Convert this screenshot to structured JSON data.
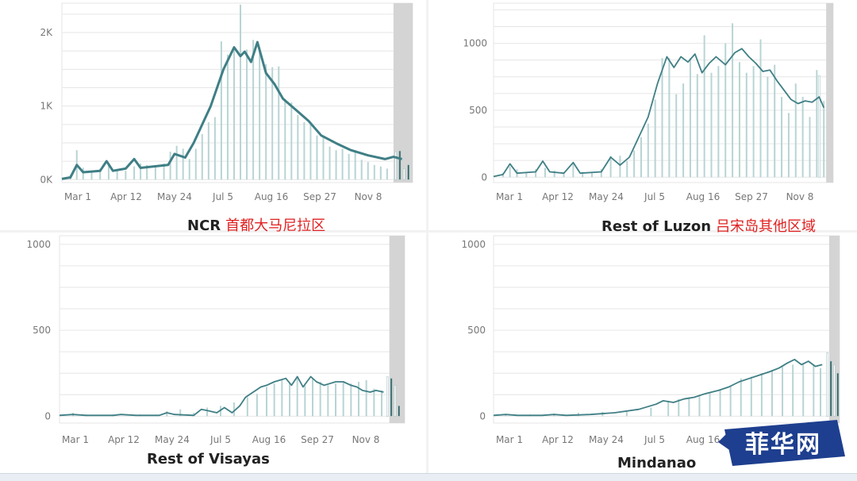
{
  "colors": {
    "line": "#3f7f85",
    "bar": "#b8d4d4",
    "shade": "#d4d4d4",
    "grid": "#e6e6e6",
    "title_cn": "#e02020",
    "watermark_bg": "#1e3f8f"
  },
  "watermark": {
    "text": "菲华网"
  },
  "chart_data": [
    {
      "id": "ncr",
      "type": "bar",
      "title": "NCR",
      "title_cn": "首都大马尼拉区",
      "y_ticks": [
        {
          "v": 0,
          "label": "0K"
        },
        {
          "v": 1000,
          "label": "1K"
        },
        {
          "v": 2000,
          "label": "2K"
        }
      ],
      "x_ticks": [
        "Mar 1",
        "Apr 12",
        "May 24",
        "Jul 5",
        "Aug 16",
        "Sep 27",
        "Nov 8"
      ],
      "ylim": [
        -40,
        2400
      ],
      "line": [
        [
          0,
          10
        ],
        [
          4,
          30
        ],
        [
          7,
          200
        ],
        [
          10,
          100
        ],
        [
          18,
          120
        ],
        [
          21,
          250
        ],
        [
          24,
          120
        ],
        [
          30,
          150
        ],
        [
          34,
          280
        ],
        [
          37,
          160
        ],
        [
          50,
          200
        ],
        [
          53,
          350
        ],
        [
          58,
          300
        ],
        [
          62,
          500
        ],
        [
          70,
          1000
        ],
        [
          76,
          1500
        ],
        [
          81,
          1800
        ],
        [
          84,
          1680
        ],
        [
          86,
          1740
        ],
        [
          89,
          1600
        ],
        [
          92,
          1870
        ],
        [
          96,
          1450
        ],
        [
          100,
          1300
        ],
        [
          104,
          1100
        ],
        [
          110,
          950
        ],
        [
          116,
          800
        ],
        [
          122,
          600
        ],
        [
          130,
          480
        ],
        [
          136,
          400
        ],
        [
          144,
          330
        ],
        [
          152,
          280
        ],
        [
          156,
          310
        ],
        [
          160,
          280
        ]
      ],
      "bars": [
        [
          4,
          60
        ],
        [
          7,
          400
        ],
        [
          10,
          160
        ],
        [
          14,
          120
        ],
        [
          18,
          150
        ],
        [
          22,
          220
        ],
        [
          26,
          140
        ],
        [
          30,
          120
        ],
        [
          34,
          180
        ],
        [
          37,
          220
        ],
        [
          40,
          200
        ],
        [
          44,
          180
        ],
        [
          48,
          220
        ],
        [
          51,
          380
        ],
        [
          54,
          460
        ],
        [
          57,
          420
        ],
        [
          60,
          280
        ],
        [
          63,
          420
        ],
        [
          66,
          620
        ],
        [
          69,
          780
        ],
        [
          72,
          850
        ],
        [
          75,
          1880
        ],
        [
          78,
          1700
        ],
        [
          81,
          1800
        ],
        [
          84,
          2380
        ],
        [
          87,
          1770
        ],
        [
          90,
          1900
        ],
        [
          93,
          1800
        ],
        [
          96,
          1570
        ],
        [
          99,
          1530
        ],
        [
          102,
          1540
        ],
        [
          105,
          1100
        ],
        [
          108,
          1050
        ],
        [
          111,
          880
        ],
        [
          114,
          780
        ],
        [
          117,
          750
        ],
        [
          120,
          600
        ],
        [
          123,
          600
        ],
        [
          126,
          450
        ],
        [
          129,
          400
        ],
        [
          132,
          420
        ],
        [
          135,
          350
        ],
        [
          138,
          400
        ],
        [
          141,
          270
        ],
        [
          144,
          240
        ],
        [
          147,
          200
        ],
        [
          150,
          180
        ],
        [
          153,
          150
        ]
      ],
      "shade_from": 156,
      "tail_bars": [
        [
          157,
          380
        ],
        [
          159,
          390
        ],
        [
          161,
          150
        ],
        [
          163,
          200
        ]
      ]
    },
    {
      "id": "rest-of-luzon",
      "type": "bar",
      "title": "Rest of Luzon",
      "title_cn": "吕宋岛其他区域",
      "y_ticks": [
        {
          "v": 0,
          "label": "0"
        },
        {
          "v": 500,
          "label": "500"
        },
        {
          "v": 1000,
          "label": "1000"
        }
      ],
      "x_ticks": [
        "Mar 1",
        "Apr 12",
        "May 24",
        "Jul 5",
        "Aug 16",
        "Sep 27",
        "Nov 8"
      ],
      "ylim": [
        -40,
        1300
      ],
      "line": [
        [
          0,
          5
        ],
        [
          4,
          20
        ],
        [
          7,
          100
        ],
        [
          10,
          30
        ],
        [
          18,
          40
        ],
        [
          21,
          120
        ],
        [
          24,
          40
        ],
        [
          30,
          30
        ],
        [
          34,
          110
        ],
        [
          37,
          30
        ],
        [
          46,
          40
        ],
        [
          50,
          150
        ],
        [
          54,
          90
        ],
        [
          58,
          150
        ],
        [
          62,
          300
        ],
        [
          66,
          450
        ],
        [
          70,
          700
        ],
        [
          74,
          900
        ],
        [
          77,
          820
        ],
        [
          80,
          900
        ],
        [
          83,
          860
        ],
        [
          86,
          920
        ],
        [
          89,
          780
        ],
        [
          92,
          850
        ],
        [
          95,
          900
        ],
        [
          99,
          840
        ],
        [
          103,
          930
        ],
        [
          106,
          960
        ],
        [
          109,
          900
        ],
        [
          112,
          850
        ],
        [
          115,
          790
        ],
        [
          118,
          800
        ],
        [
          121,
          720
        ],
        [
          124,
          650
        ],
        [
          127,
          580
        ],
        [
          130,
          550
        ],
        [
          133,
          570
        ],
        [
          136,
          560
        ],
        [
          139,
          600
        ],
        [
          141,
          520
        ]
      ],
      "bars": [
        [
          4,
          30
        ],
        [
          7,
          80
        ],
        [
          10,
          60
        ],
        [
          14,
          40
        ],
        [
          18,
          60
        ],
        [
          22,
          70
        ],
        [
          26,
          50
        ],
        [
          30,
          30
        ],
        [
          34,
          110
        ],
        [
          38,
          40
        ],
        [
          42,
          30
        ],
        [
          46,
          60
        ],
        [
          50,
          160
        ],
        [
          54,
          160
        ],
        [
          57,
          120
        ],
        [
          60,
          200
        ],
        [
          63,
          300
        ],
        [
          66,
          400
        ],
        [
          69,
          580
        ],
        [
          72,
          890
        ],
        [
          75,
          890
        ],
        [
          78,
          620
        ],
        [
          81,
          700
        ],
        [
          84,
          890
        ],
        [
          87,
          770
        ],
        [
          90,
          1060
        ],
        [
          93,
          780
        ],
        [
          96,
          830
        ],
        [
          99,
          1000
        ],
        [
          102,
          1150
        ],
        [
          105,
          860
        ],
        [
          108,
          780
        ],
        [
          111,
          830
        ],
        [
          114,
          1030
        ],
        [
          117,
          750
        ],
        [
          120,
          840
        ],
        [
          123,
          600
        ],
        [
          126,
          480
        ],
        [
          129,
          700
        ],
        [
          132,
          600
        ],
        [
          135,
          450
        ],
        [
          138,
          800
        ],
        [
          141,
          570
        ]
      ],
      "shade_from": 142,
      "tail_bars": [
        [
          139,
          760
        ]
      ]
    },
    {
      "id": "rest-of-visayas",
      "type": "bar",
      "title": "Rest of Visayas",
      "title_cn": "",
      "y_ticks": [
        {
          "v": 0,
          "label": "0"
        },
        {
          "v": 500,
          "label": "500"
        },
        {
          "v": 1000,
          "label": "1000"
        }
      ],
      "x_ticks": [
        "Mar 1",
        "Apr 12",
        "May 24",
        "Jul 5",
        "Aug 16",
        "Sep 27",
        "Nov 8"
      ],
      "ylim": [
        -40,
        1050
      ],
      "line": [
        [
          0,
          5
        ],
        [
          7,
          10
        ],
        [
          14,
          5
        ],
        [
          28,
          5
        ],
        [
          32,
          10
        ],
        [
          40,
          5
        ],
        [
          52,
          5
        ],
        [
          56,
          20
        ],
        [
          60,
          10
        ],
        [
          70,
          5
        ],
        [
          74,
          40
        ],
        [
          78,
          30
        ],
        [
          82,
          20
        ],
        [
          86,
          50
        ],
        [
          90,
          20
        ],
        [
          94,
          60
        ],
        [
          97,
          110
        ],
        [
          101,
          140
        ],
        [
          105,
          170
        ],
        [
          108,
          180
        ],
        [
          112,
          200
        ],
        [
          115,
          210
        ],
        [
          118,
          220
        ],
        [
          121,
          180
        ],
        [
          124,
          230
        ],
        [
          127,
          170
        ],
        [
          131,
          230
        ],
        [
          134,
          200
        ],
        [
          138,
          180
        ],
        [
          141,
          190
        ],
        [
          144,
          200
        ],
        [
          148,
          200
        ],
        [
          152,
          180
        ],
        [
          155,
          170
        ],
        [
          158,
          150
        ],
        [
          162,
          140
        ],
        [
          165,
          150
        ],
        [
          169,
          140
        ]
      ],
      "bars": [
        [
          7,
          20
        ],
        [
          14,
          10
        ],
        [
          28,
          10
        ],
        [
          42,
          10
        ],
        [
          56,
          30
        ],
        [
          63,
          40
        ],
        [
          70,
          20
        ],
        [
          77,
          50
        ],
        [
          84,
          60
        ],
        [
          91,
          80
        ],
        [
          98,
          110
        ],
        [
          103,
          130
        ],
        [
          108,
          170
        ],
        [
          112,
          190
        ],
        [
          116,
          210
        ],
        [
          120,
          190
        ],
        [
          124,
          220
        ],
        [
          128,
          180
        ],
        [
          132,
          220
        ],
        [
          136,
          200
        ],
        [
          140,
          180
        ],
        [
          144,
          190
        ],
        [
          148,
          200
        ],
        [
          152,
          190
        ],
        [
          156,
          200
        ],
        [
          160,
          210
        ],
        [
          164,
          160
        ],
        [
          168,
          150
        ]
      ],
      "shade_from": 172,
      "tail_bars": [
        [
          171,
          230
        ],
        [
          173,
          220
        ],
        [
          175,
          180
        ],
        [
          177,
          60
        ]
      ]
    },
    {
      "id": "mindanao",
      "type": "bar",
      "title": "Mindanao",
      "title_cn": "",
      "y_ticks": [
        {
          "v": 0,
          "label": "0"
        },
        {
          "v": 500,
          "label": "500"
        },
        {
          "v": 1000,
          "label": "1000"
        }
      ],
      "x_ticks": [
        "Mar 1",
        "Apr 12",
        "May 24",
        "Jul 5",
        "Aug 16"
      ],
      "ylim": [
        -40,
        1050
      ],
      "line": [
        [
          0,
          5
        ],
        [
          7,
          10
        ],
        [
          14,
          5
        ],
        [
          28,
          5
        ],
        [
          35,
          10
        ],
        [
          42,
          5
        ],
        [
          56,
          10
        ],
        [
          70,
          20
        ],
        [
          84,
          40
        ],
        [
          94,
          70
        ],
        [
          98,
          90
        ],
        [
          104,
          80
        ],
        [
          110,
          100
        ],
        [
          116,
          110
        ],
        [
          122,
          130
        ],
        [
          130,
          150
        ],
        [
          136,
          170
        ],
        [
          142,
          200
        ],
        [
          148,
          220
        ],
        [
          154,
          240
        ],
        [
          160,
          260
        ],
        [
          165,
          280
        ],
        [
          170,
          310
        ],
        [
          174,
          330
        ],
        [
          178,
          300
        ],
        [
          182,
          320
        ],
        [
          186,
          290
        ],
        [
          190,
          300
        ]
      ],
      "bars": [
        [
          7,
          10
        ],
        [
          21,
          10
        ],
        [
          35,
          15
        ],
        [
          49,
          20
        ],
        [
          63,
          25
        ],
        [
          77,
          30
        ],
        [
          91,
          50
        ],
        [
          101,
          90
        ],
        [
          107,
          100
        ],
        [
          113,
          110
        ],
        [
          119,
          120
        ],
        [
          125,
          140
        ],
        [
          131,
          150
        ],
        [
          137,
          180
        ],
        [
          143,
          220
        ],
        [
          149,
          230
        ],
        [
          155,
          250
        ],
        [
          161,
          270
        ],
        [
          167,
          290
        ],
        [
          173,
          300
        ],
        [
          179,
          310
        ],
        [
          185,
          300
        ],
        [
          189,
          280
        ]
      ],
      "shade_from": 194,
      "tail_bars": [
        [
          193,
          370
        ],
        [
          195,
          320
        ],
        [
          197,
          300
        ],
        [
          199,
          250
        ]
      ]
    }
  ]
}
